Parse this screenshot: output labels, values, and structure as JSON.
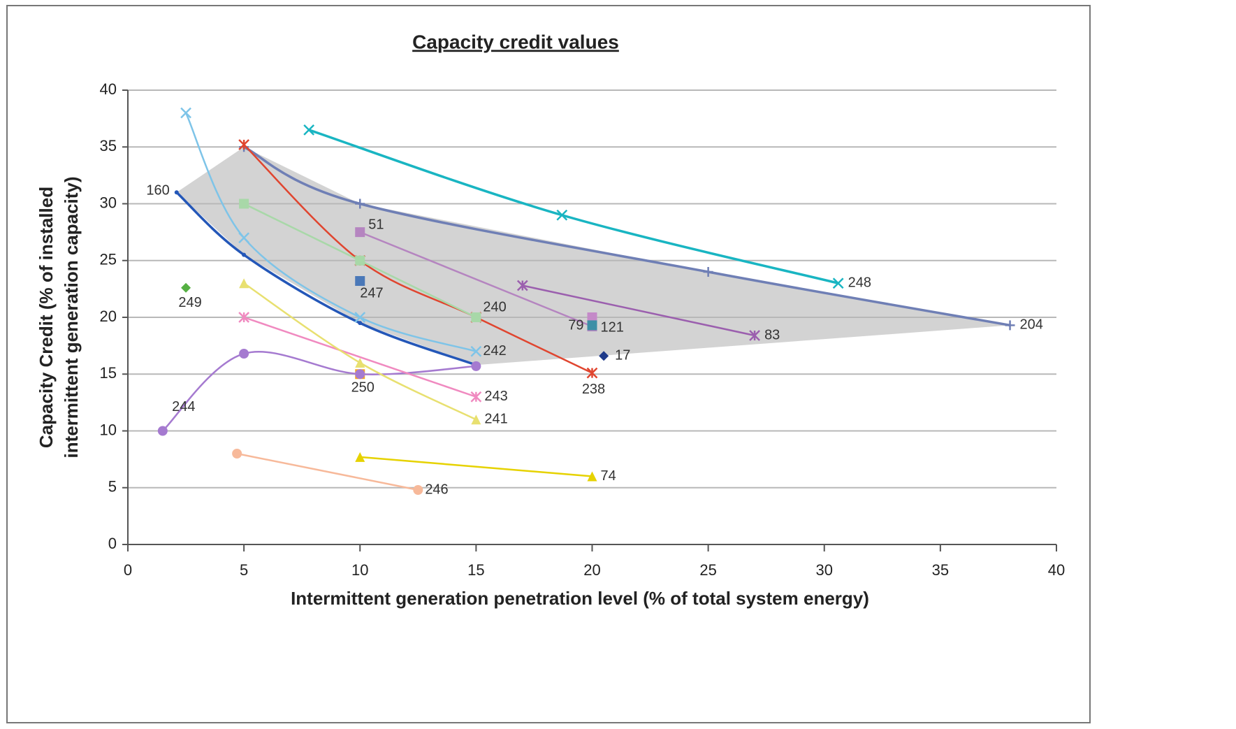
{
  "chart_data": {
    "type": "line",
    "title": "Capacity credit values",
    "xlabel": "Intermittent generation penetration level (% of total system energy)",
    "ylabel": [
      "Capacity Credit (% of installed",
      "intermittent generation capacity)"
    ],
    "xlim": [
      0,
      40
    ],
    "xticks": [
      0,
      5,
      10,
      15,
      20,
      25,
      30,
      35,
      40
    ],
    "ylim": [
      0,
      40
    ],
    "yticks": [
      0,
      5,
      10,
      15,
      20,
      25,
      30,
      35,
      40
    ],
    "grid": true,
    "series": [
      {
        "name": "248",
        "color": "#19b5c2",
        "marker": "x",
        "x": [
          7.8,
          18.7,
          30.6
        ],
        "values": [
          36.5,
          29,
          23
        ]
      },
      {
        "name": "204",
        "color": "#6f7fb5",
        "marker": "plus",
        "x": [
          5,
          10,
          25,
          38
        ],
        "values": [
          35,
          30,
          24,
          19.3
        ]
      },
      {
        "name": "160",
        "color": "#2457b8",
        "marker": "none",
        "x": [
          2.1,
          5,
          10,
          15
        ],
        "values": [
          31,
          25.5,
          19.5,
          15.8
        ]
      },
      {
        "name": "242",
        "color": "#7ec4e8",
        "marker": "x",
        "x": [
          2.5,
          5,
          10,
          15
        ],
        "values": [
          38,
          27,
          20,
          17
        ]
      },
      {
        "name": "238",
        "color": "#e0452f",
        "marker": "star",
        "x": [
          5,
          10,
          15,
          20
        ],
        "values": [
          35.2,
          25,
          20,
          15.1
        ]
      },
      {
        "name": "240",
        "color": "#a8d8a8",
        "marker": "square",
        "x": [
          5,
          10,
          15
        ],
        "values": [
          30,
          25,
          20
        ]
      },
      {
        "name": "51",
        "color": "#b585c0",
        "marker": "square",
        "x": [
          10,
          20
        ],
        "values": [
          27.5,
          19.2
        ]
      },
      {
        "name": "79",
        "color": "#c48ac8",
        "marker": "square",
        "x": [
          20
        ],
        "values": [
          20
        ]
      },
      {
        "name": "121",
        "color": "#3d8fa6",
        "marker": "square",
        "x": [
          20
        ],
        "values": [
          19.3
        ]
      },
      {
        "name": "247",
        "color": "#4a78b8",
        "marker": "square",
        "x": [
          10
        ],
        "values": [
          23.2
        ]
      },
      {
        "name": "83",
        "color": "#9b5fae",
        "marker": "star",
        "x": [
          17,
          27
        ],
        "values": [
          22.8,
          18.4
        ]
      },
      {
        "name": "17",
        "color": "#1e3a8a",
        "marker": "diamond",
        "x": [
          20.5
        ],
        "values": [
          16.6
        ]
      },
      {
        "name": "249",
        "color": "#55b043",
        "marker": "diamond",
        "x": [
          2.5
        ],
        "values": [
          22.6
        ]
      },
      {
        "name": "250",
        "color": "#f5a623",
        "marker": "square",
        "x": [
          10
        ],
        "values": [
          15
        ]
      },
      {
        "name": "244",
        "color": "#a57ad0",
        "marker": "circle",
        "x": [
          1.5,
          5,
          10,
          15
        ],
        "values": [
          10,
          16.8,
          15,
          15.7
        ]
      },
      {
        "name": "243",
        "color": "#f08ac0",
        "marker": "star",
        "x": [
          5,
          15
        ],
        "values": [
          20,
          13
        ]
      },
      {
        "name": "241",
        "color": "#e8e070",
        "marker": "triangle",
        "x": [
          5,
          10,
          15
        ],
        "values": [
          23,
          16,
          11
        ]
      },
      {
        "name": "74",
        "color": "#e6d200",
        "marker": "triangle",
        "x": [
          10,
          20
        ],
        "values": [
          7.7,
          6
        ]
      },
      {
        "name": "246",
        "color": "#f7b99a",
        "marker": "circle",
        "x": [
          4.7,
          12.5
        ],
        "values": [
          8,
          4.8
        ]
      }
    ]
  }
}
